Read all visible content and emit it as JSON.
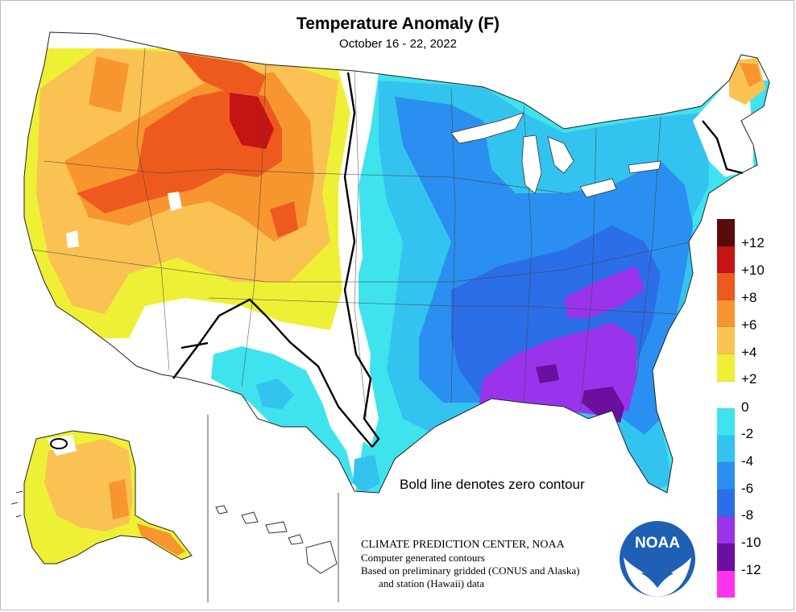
{
  "title": "Temperature Anomaly (F)",
  "date_range": "October 16 - 22, 2022",
  "note": "Bold line denotes zero contour",
  "credits": [
    "CLIMATE PREDICTION CENTER, NOAA",
    "Computer generated contours",
    "Based on preliminary gridded (CONUS and Alaska)",
    "and station (Hawaii) data"
  ],
  "logo_text": "NOAA",
  "legend": {
    "labels": [
      "+12",
      "+10",
      "+8",
      "+6",
      "+4",
      "+2",
      "0",
      "-2",
      "-4",
      "-6",
      "-8",
      "-10",
      "-12"
    ],
    "colors": [
      "#5a0a0a",
      "#c41414",
      "#ee5a1e",
      "#f7952e",
      "#fac252",
      "#eef036",
      "#ffffff",
      "#3fe3ee",
      "#33c3ef",
      "#2a8ff0",
      "#2c6ee8",
      "#9a34ec",
      "#6b0f9e",
      "#ff33ee"
    ]
  },
  "colors": {
    "warm_8": "#ee5a1e",
    "warm_6": "#f7952e",
    "warm_4": "#fac252",
    "warm_2": "#eef036",
    "cool_2": "#3fe3ee",
    "cool_4": "#33c3ef",
    "cool_6": "#2a8ff0",
    "cool_8": "#2c6ee8",
    "cool_10": "#9a34ec",
    "cool_12": "#6b0f9e"
  }
}
